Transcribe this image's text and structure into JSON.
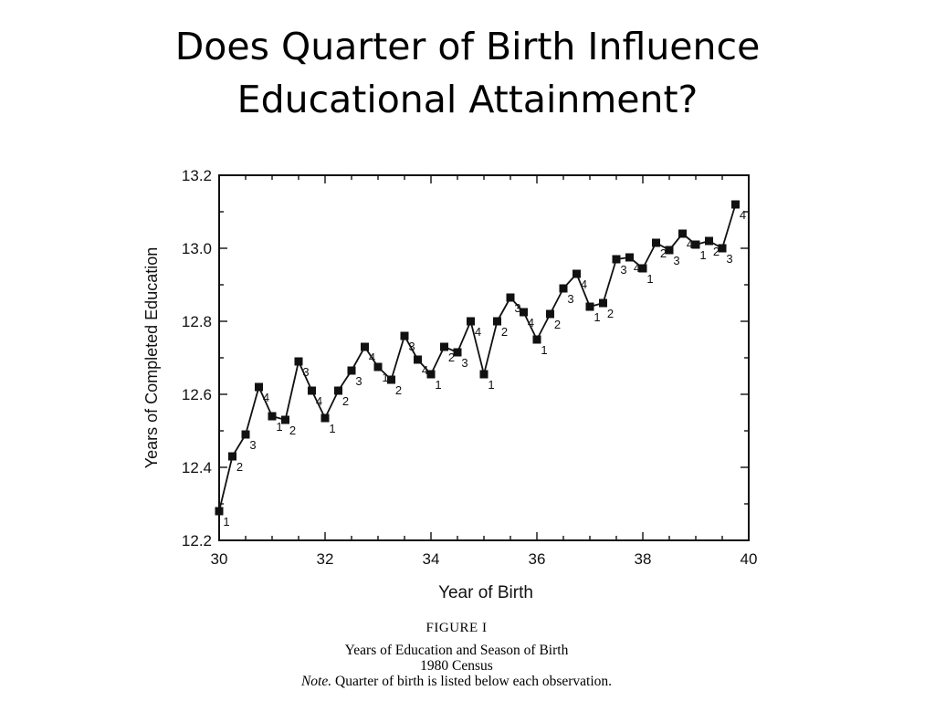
{
  "title": {
    "line1": "Does Quarter of Birth Influence",
    "line2": "Educational Attainment?"
  },
  "caption": {
    "figure_label": "FIGURE I",
    "line1": "Years of Education and Season of Birth",
    "line2": "1980 Census",
    "note_label": "Note.",
    "note_text": " Quarter of birth is listed below each observation."
  },
  "chart_data": {
    "type": "line",
    "title": "",
    "xlabel": "Year of Birth",
    "ylabel": "Years of Completed Education",
    "xlim": [
      30,
      40
    ],
    "ylim": [
      12.2,
      13.2
    ],
    "x_ticks": [
      30,
      32,
      34,
      36,
      38,
      40
    ],
    "x_tick_labels": [
      "30",
      "32",
      "34",
      "36",
      "38",
      "40"
    ],
    "y_ticks": [
      12.2,
      12.4,
      12.6,
      12.8,
      13.0,
      13.2
    ],
    "y_tick_labels": [
      "12.2",
      "12.4",
      "12.6",
      "12.8",
      "13.0",
      "13.2"
    ],
    "grid": false,
    "marker": "square",
    "series": [
      {
        "points": [
          {
            "x": 30.0,
            "y": 12.28,
            "q": "1"
          },
          {
            "x": 30.25,
            "y": 12.43,
            "q": "2"
          },
          {
            "x": 30.5,
            "y": 12.49,
            "q": "3"
          },
          {
            "x": 30.75,
            "y": 12.62,
            "q": "4"
          },
          {
            "x": 31.0,
            "y": 12.54,
            "q": "1"
          },
          {
            "x": 31.25,
            "y": 12.53,
            "q": "2"
          },
          {
            "x": 31.5,
            "y": 12.69,
            "q": "3"
          },
          {
            "x": 31.75,
            "y": 12.61,
            "q": "4"
          },
          {
            "x": 32.0,
            "y": 12.535,
            "q": "1"
          },
          {
            "x": 32.25,
            "y": 12.61,
            "q": "2"
          },
          {
            "x": 32.5,
            "y": 12.665,
            "q": "3"
          },
          {
            "x": 32.75,
            "y": 12.73,
            "q": "4"
          },
          {
            "x": 33.0,
            "y": 12.675,
            "q": "1"
          },
          {
            "x": 33.25,
            "y": 12.64,
            "q": "2"
          },
          {
            "x": 33.5,
            "y": 12.76,
            "q": "3"
          },
          {
            "x": 33.75,
            "y": 12.695,
            "q": "4"
          },
          {
            "x": 34.0,
            "y": 12.655,
            "q": "1"
          },
          {
            "x": 34.25,
            "y": 12.73,
            "q": "2"
          },
          {
            "x": 34.5,
            "y": 12.715,
            "q": "3"
          },
          {
            "x": 34.75,
            "y": 12.8,
            "q": "4"
          },
          {
            "x": 35.0,
            "y": 12.655,
            "q": "1"
          },
          {
            "x": 35.25,
            "y": 12.8,
            "q": "2"
          },
          {
            "x": 35.5,
            "y": 12.865,
            "q": "3"
          },
          {
            "x": 35.75,
            "y": 12.825,
            "q": "4"
          },
          {
            "x": 36.0,
            "y": 12.75,
            "q": "1"
          },
          {
            "x": 36.25,
            "y": 12.82,
            "q": "2"
          },
          {
            "x": 36.5,
            "y": 12.89,
            "q": "3"
          },
          {
            "x": 36.75,
            "y": 12.93,
            "q": "4"
          },
          {
            "x": 37.0,
            "y": 12.84,
            "q": "1"
          },
          {
            "x": 37.25,
            "y": 12.85,
            "q": "2"
          },
          {
            "x": 37.5,
            "y": 12.97,
            "q": "3"
          },
          {
            "x": 37.75,
            "y": 12.975,
            "q": "4"
          },
          {
            "x": 38.0,
            "y": 12.945,
            "q": "1"
          },
          {
            "x": 38.25,
            "y": 13.015,
            "q": "2"
          },
          {
            "x": 38.5,
            "y": 12.995,
            "q": "3"
          },
          {
            "x": 38.75,
            "y": 13.04,
            "q": "4"
          },
          {
            "x": 39.0,
            "y": 13.01,
            "q": "1"
          },
          {
            "x": 39.25,
            "y": 13.02,
            "q": "2"
          },
          {
            "x": 39.5,
            "y": 13.0,
            "q": "3"
          },
          {
            "x": 39.75,
            "y": 13.12,
            "q": "4"
          }
        ]
      }
    ]
  }
}
